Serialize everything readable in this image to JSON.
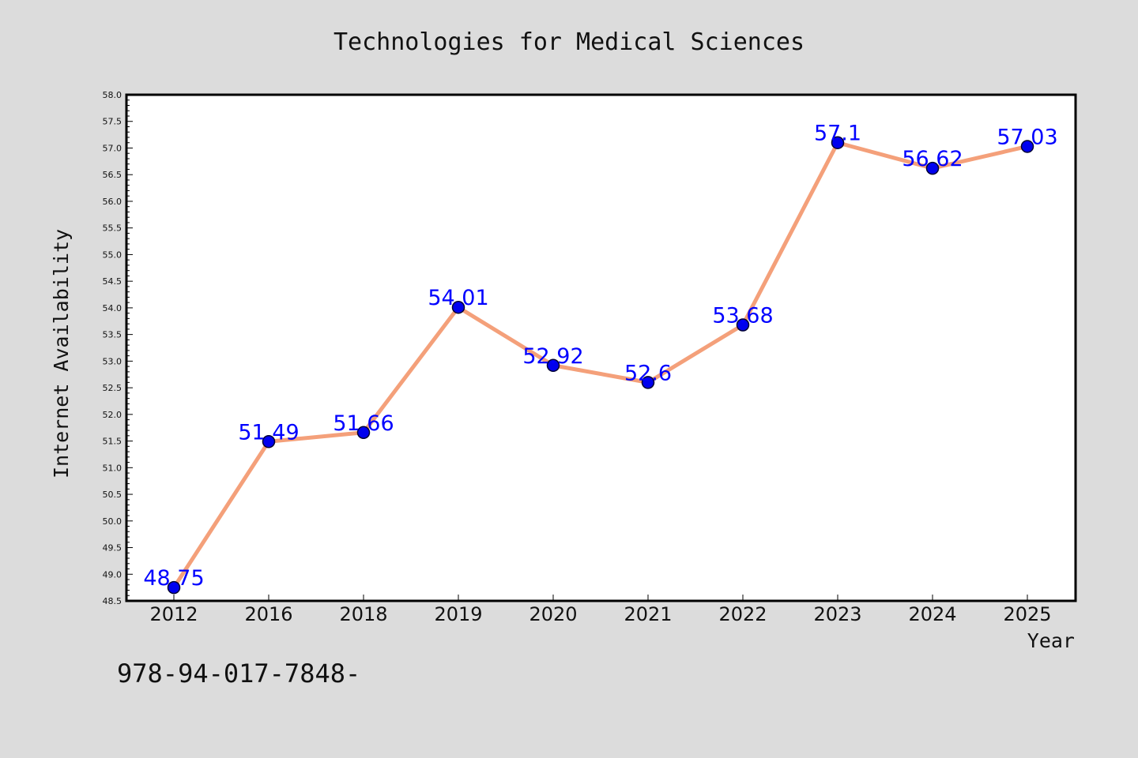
{
  "chart_data": {
    "type": "line",
    "title": "Technologies for Medical Sciences",
    "xlabel": "Year",
    "ylabel": "Internet Availability",
    "categories": [
      "2012",
      "2016",
      "2018",
      "2019",
      "2020",
      "2021",
      "2022",
      "2023",
      "2024",
      "2025"
    ],
    "series": [
      {
        "values": [
          48.75,
          51.49,
          51.66,
          54.01,
          52.92,
          52.6,
          53.68,
          57.1,
          56.62,
          57.03
        ],
        "labels": [
          "48.75",
          "51.49",
          "51.66",
          "54.01",
          "52.92",
          "52.6",
          "53.68",
          "57.1",
          "56.62",
          "57.03"
        ],
        "line_color": "#f4a07a",
        "marker_color": "#0000ee",
        "label_color": "#0000ff"
      }
    ],
    "ylim": [
      48.5,
      58.0
    ],
    "yticks": [
      "48.5",
      "49.0",
      "49.5",
      "50.0",
      "50.5",
      "51.0",
      "51.5",
      "52.0",
      "52.5",
      "53.0",
      "53.5",
      "54.0",
      "54.5",
      "55.0",
      "55.5",
      "56.0",
      "56.5",
      "57.0",
      "57.5",
      "58.0"
    ],
    "grid": false,
    "legend": "none"
  },
  "footer_text": "978-94-017-7848-"
}
